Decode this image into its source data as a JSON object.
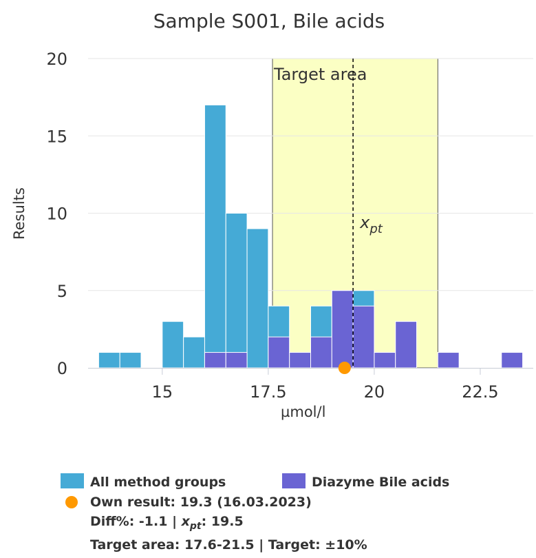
{
  "chart_data": {
    "type": "bar",
    "title": "Sample S001, Bile acids",
    "xlabel": "µmol/l",
    "ylabel": "Results",
    "xlim": [
      13.25,
      23.75
    ],
    "ylim": [
      0,
      20
    ],
    "xticks": [
      "15",
      "17.5",
      "20",
      "22.5"
    ],
    "xtick_values": [
      15,
      17.5,
      20,
      22.5
    ],
    "yticks": [
      "0",
      "5",
      "10",
      "15",
      "20"
    ],
    "ytick_values": [
      0,
      5,
      10,
      15,
      20
    ],
    "bin_width": 0.5,
    "target_area": {
      "label": "Target area",
      "from": 17.6,
      "to": 21.5,
      "color": "#fbffc4"
    },
    "xpt": {
      "label": "x",
      "sub": "pt",
      "value": 19.5
    },
    "own_result": {
      "value": 19.3,
      "y": 0,
      "color": "#ff9900"
    },
    "series": [
      {
        "name": "All method groups",
        "color": "#45aad6",
        "bins": [
          {
            "x": 13.5,
            "value": 1
          },
          {
            "x": 14.0,
            "value": 1
          },
          {
            "x": 15.0,
            "value": 3
          },
          {
            "x": 15.5,
            "value": 2
          },
          {
            "x": 16.0,
            "value": 17
          },
          {
            "x": 16.5,
            "value": 10
          },
          {
            "x": 17.0,
            "value": 9
          },
          {
            "x": 17.5,
            "value": 4
          },
          {
            "x": 18.0,
            "value": 1
          },
          {
            "x": 18.5,
            "value": 4
          },
          {
            "x": 19.0,
            "value": 5
          },
          {
            "x": 19.5,
            "value": 5
          },
          {
            "x": 20.0,
            "value": 1
          },
          {
            "x": 20.5,
            "value": 3
          },
          {
            "x": 21.5,
            "value": 1
          },
          {
            "x": 23.0,
            "value": 1
          }
        ]
      },
      {
        "name": "Diazyme Bile acids",
        "color": "#6a64d3",
        "bins": [
          {
            "x": 16.0,
            "value": 1
          },
          {
            "x": 16.5,
            "value": 1
          },
          {
            "x": 17.5,
            "value": 2
          },
          {
            "x": 18.0,
            "value": 1
          },
          {
            "x": 18.5,
            "value": 2
          },
          {
            "x": 19.0,
            "value": 5
          },
          {
            "x": 19.5,
            "value": 4
          },
          {
            "x": 20.0,
            "value": 1
          },
          {
            "x": 20.5,
            "value": 3
          },
          {
            "x": 21.5,
            "value": 1
          },
          {
            "x": 23.0,
            "value": 1
          }
        ]
      }
    ]
  },
  "legend": {
    "all_groups": "All method groups",
    "diazyme": "Diazyme Bile acids",
    "own_result": "Own result: 19.3 (16.03.2023)",
    "diff_prefix": "Diff%: -1.1 | ",
    "xpt_x": "x",
    "xpt_sub": "pt",
    "xpt_suffix": ": 19.5",
    "target_line": "Target area: 17.6-21.5 | Target: ±10%"
  }
}
